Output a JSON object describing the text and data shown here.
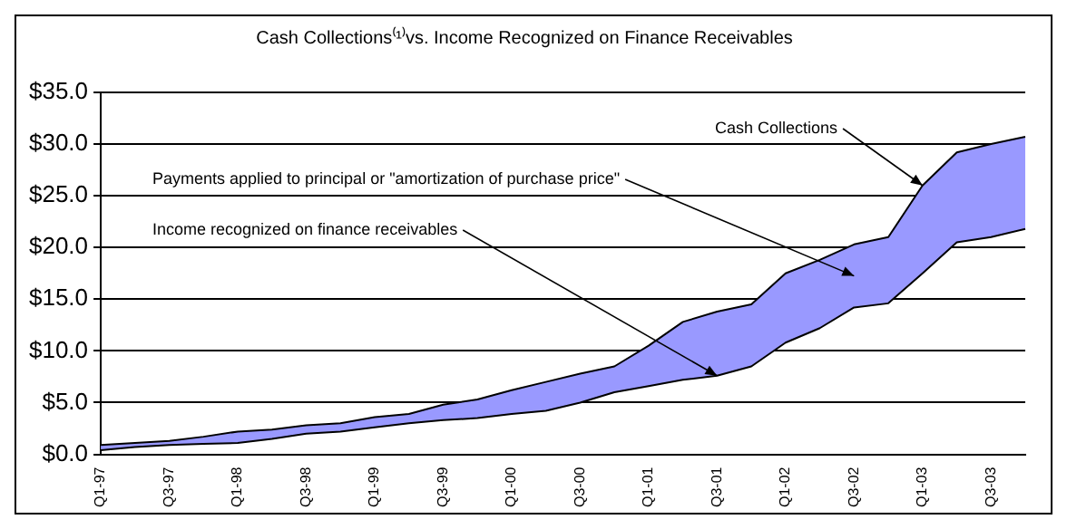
{
  "chart_data": {
    "type": "line",
    "title": "Cash Collections⁽¹⁾vs. Income Recognized on Finance Receivables",
    "categories": [
      "Q1-97",
      null,
      "Q3-97",
      null,
      "Q1-98",
      null,
      "Q3-98",
      null,
      "Q1-99",
      null,
      "Q3-99",
      null,
      "Q1-00",
      null,
      "Q3-00",
      null,
      "Q1-01",
      null,
      "Q3-01",
      null,
      "Q1-02",
      null,
      "Q3-02",
      null,
      "Q1-03",
      null,
      "Q3-03",
      null
    ],
    "series": [
      {
        "type": "line",
        "color": "#000000",
        "values": [
          0.4,
          0.7,
          0.9,
          1.0,
          1.1,
          1.5,
          2.0,
          2.2,
          2.6,
          3.0,
          3.3,
          3.5,
          3.9,
          4.2,
          5.0,
          6.0,
          6.6,
          7.2,
          7.6,
          8.5,
          10.8,
          12.2,
          14.2,
          14.6,
          17.5,
          20.5,
          21.0,
          21.8
        ]
      },
      {
        "type": "area",
        "color": "#9999ff",
        "values": [
          0.9,
          1.1,
          1.3,
          1.7,
          2.2,
          2.4,
          2.8,
          3.0,
          3.6,
          3.9,
          4.8,
          5.3,
          6.2,
          7.0,
          7.8,
          8.5,
          10.5,
          12.8,
          13.8,
          14.5,
          17.5,
          18.8,
          20.3,
          21.0,
          26.0,
          29.2,
          30.0,
          30.7
        ]
      }
    ],
    "ylim": [
      0,
      35
    ],
    "yticks": [
      {
        "value": 0,
        "label": "$0.0"
      },
      {
        "value": 5,
        "label": "$5.0"
      },
      {
        "value": 10,
        "label": "$10.0"
      },
      {
        "value": 15,
        "label": "$15.0"
      },
      {
        "value": 20,
        "label": "$20.0"
      },
      {
        "value": 25,
        "label": "$25.0"
      },
      {
        "value": 30,
        "label": "$30.0"
      },
      {
        "value": 35,
        "label": "$35.0"
      }
    ],
    "grid": "y",
    "legend": false,
    "marker": "none",
    "annotations": [
      {
        "text": "Cash Collections",
        "x": "Q1-03",
        "y": 26
      },
      "Payments applied to principal or \"amortization of purchase price\"",
      {
        "text": "Income recognized on finance receivables",
        "x": "Q3-01",
        "y": 7.6
      }
    ]
  }
}
